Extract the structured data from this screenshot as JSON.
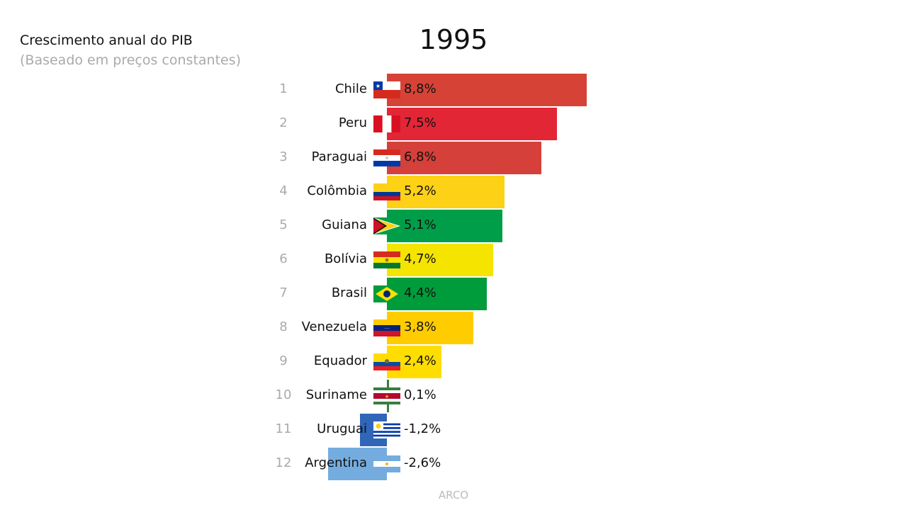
{
  "chart_data": {
    "type": "bar",
    "title": "Crescimento anual do PIB",
    "subtitle": "(Baseado em preços constantes)",
    "year": "1995",
    "source": "ARCO",
    "unit": "%",
    "categories": [
      "Chile",
      "Peru",
      "Paraguai",
      "Colômbia",
      "Guiana",
      "Bolívia",
      "Brasil",
      "Venezuela",
      "Equador",
      "Suriname",
      "Uruguai",
      "Argentina"
    ],
    "ranks": [
      "1",
      "2",
      "3",
      "4",
      "5",
      "6",
      "7",
      "8",
      "9",
      "10",
      "11",
      "12"
    ],
    "values": [
      8.8,
      7.5,
      6.8,
      5.2,
      5.1,
      4.7,
      4.4,
      3.8,
      2.4,
      0.1,
      -1.2,
      -2.6
    ],
    "value_labels": [
      "8,8%",
      "7,5%",
      "6,8%",
      "5,2%",
      "5,1%",
      "4,7%",
      "4,4%",
      "3,8%",
      "2,4%",
      "0,1%",
      "-1,2%",
      "-2,6%"
    ],
    "colors": [
      "#d64336",
      "#e32636",
      "#d5403a",
      "#fcd116",
      "#009e49",
      "#f4e400",
      "#009c3b",
      "#ffcc00",
      "#ffdd00",
      "#377e3f",
      "#2f66b8",
      "#74acdf"
    ]
  }
}
